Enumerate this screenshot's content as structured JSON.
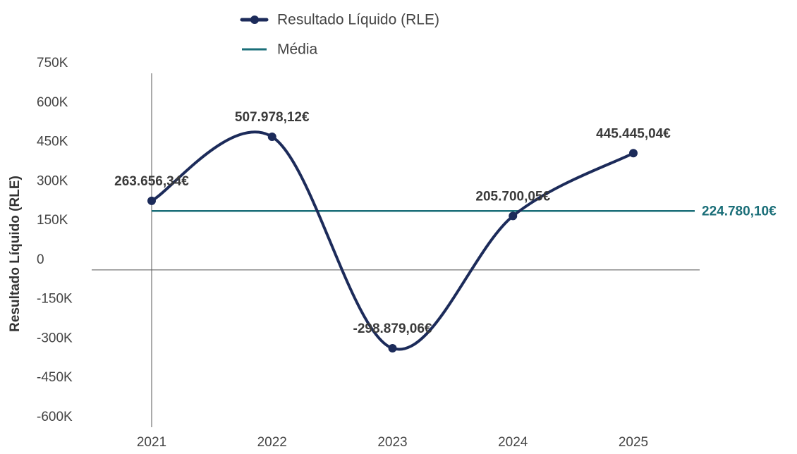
{
  "chart_data": {
    "type": "line",
    "y_label": "Resultado Líquido (RLE)",
    "categories": [
      "2021",
      "2022",
      "2023",
      "2024",
      "2025"
    ],
    "series": [
      {
        "name": "Resultado Líquido (RLE)",
        "color": "#1c2b5a",
        "values": [
          263656.34,
          507978.12,
          -298879.06,
          205700.05,
          445445.04
        ],
        "value_labels": [
          "263.656,34€",
          "507.978,12€",
          "-298.879,06€",
          "205.700,05€",
          "445.445,04€"
        ]
      }
    ],
    "mean": {
      "name": "Média",
      "color": "#1a6e78",
      "value": 224780.1,
      "value_label": "224.780,10€"
    },
    "ylim": [
      -600000,
      750000
    ],
    "yticks": [
      {
        "value": 750000,
        "label": "750K"
      },
      {
        "value": 600000,
        "label": "600K"
      },
      {
        "value": 450000,
        "label": "450K"
      },
      {
        "value": 300000,
        "label": "300K"
      },
      {
        "value": 150000,
        "label": "150K"
      },
      0,
      {
        "value": -150000,
        "label": "-150K"
      },
      {
        "value": -300000,
        "label": "-300K"
      },
      {
        "value": -450000,
        "label": "-450K"
      },
      {
        "value": -600000,
        "label": "-600K"
      }
    ],
    "grid": false
  }
}
